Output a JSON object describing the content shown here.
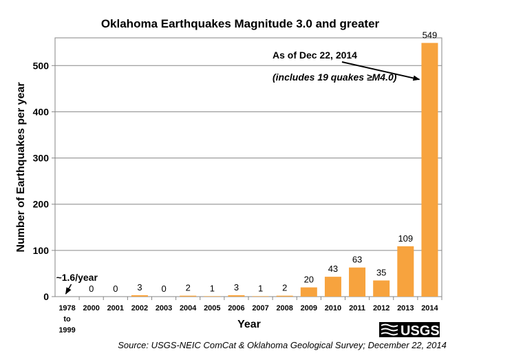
{
  "chart_data": {
    "type": "bar",
    "title": "Oklahoma Earthquakes Magnitude 3.0 and greater",
    "xlabel": "Year",
    "ylabel": "Number of Earthquakes per year",
    "categories": [
      "1978 to 1999",
      "2000",
      "2001",
      "2002",
      "2003",
      "2004",
      "2005",
      "2006",
      "2007",
      "2008",
      "2009",
      "2010",
      "2011",
      "2012",
      "2013",
      "2014"
    ],
    "category_lines": [
      [
        "1978",
        "to",
        "1999"
      ],
      [
        "2000"
      ],
      [
        "2001"
      ],
      [
        "2002"
      ],
      [
        "2003"
      ],
      [
        "2004"
      ],
      [
        "2005"
      ],
      [
        "2006"
      ],
      [
        "2007"
      ],
      [
        "2008"
      ],
      [
        "2009"
      ],
      [
        "2010"
      ],
      [
        "2011"
      ],
      [
        "2012"
      ],
      [
        "2013"
      ],
      [
        "2014"
      ]
    ],
    "values": [
      1.6,
      0,
      0,
      3,
      0,
      2,
      1,
      3,
      1,
      2,
      20,
      43,
      63,
      35,
      109,
      549
    ],
    "data_labels": [
      "~1.6/year",
      "0",
      "0",
      "3",
      "0",
      "2",
      "1",
      "3",
      "1",
      "2",
      "20",
      "43",
      "63",
      "35",
      "109",
      "549"
    ],
    "ylim": [
      0,
      560
    ],
    "yticks": [
      0,
      100,
      200,
      300,
      400,
      500
    ],
    "grid": true,
    "bar_color": "#F7A33E",
    "annotations": [
      {
        "text": "As of Dec 22, 2014",
        "style": "bold",
        "target_category": "2014",
        "target_value": 470
      },
      {
        "text": "(includes 19 quakes ≥M4.0)",
        "style": "bold-italic"
      }
    ]
  },
  "source_note": "Source: USGS-NEIC ComCat & Oklahoma Geological Survey;  December 22, 2014",
  "logo": {
    "text": "USGS",
    "icon": "usgs-wave-logo"
  }
}
